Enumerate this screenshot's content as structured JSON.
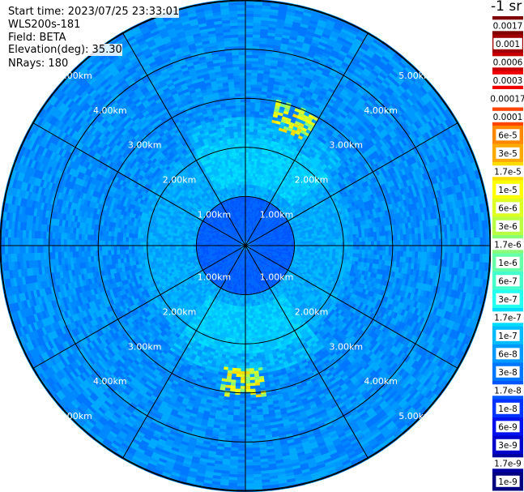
{
  "header": {
    "start_time": "Start time: 2023/07/25 23:33:01",
    "instrument": "WLS200s-181",
    "field": "Field: BETA",
    "elevation": "Elevation(deg): 35.30",
    "nrays": "NRays: 180"
  },
  "colorbar": {
    "title": "-1 sr",
    "labels": [
      "0.0017",
      "0.001",
      "0.0006",
      "0.0003",
      "0.00017",
      "0.0001",
      "6e-5",
      "3e-5",
      "1.7e-5",
      "1e-5",
      "6e-6",
      "3e-6",
      "1.7e-6",
      "1e-6",
      "6e-7",
      "3e-7",
      "1.7e-7",
      "1e-7",
      "6e-8",
      "3e-8",
      "1.7e-8",
      "1e-8",
      "6e-9",
      "3e-9",
      "1.7e-9",
      "1e-9"
    ],
    "colors": [
      "#800000",
      "#a00000",
      "#c80000",
      "#f00000",
      "#ffffff",
      "#ff4400",
      "#ff8800",
      "#ffaa00",
      "#ffdd00",
      "#ffff00",
      "#ddff22",
      "#bbff44",
      "#88ff77",
      "#66ffaa",
      "#44ffcc",
      "#22ffee",
      "#00ddff",
      "#00bbff",
      "#0099ff",
      "#0077ff",
      "#0055ff",
      "#0033ff",
      "#0011ee",
      "#0000cc",
      "#0000a0",
      "#000080"
    ]
  },
  "chart_data": {
    "type": "heatmap",
    "projection": "polar (PPI scan)",
    "field": "BETA",
    "units": "sr-1",
    "n_rays": 180,
    "elevation_deg": 35.3,
    "range_ring_labels": [
      "1.00km",
      "2.00km",
      "3.00km",
      "4.00km",
      "5.00km"
    ],
    "range_rings_km": [
      1,
      2,
      3,
      4,
      5
    ],
    "spoke_angles_deg": [
      0,
      30,
      60,
      90,
      120,
      150,
      180,
      210,
      240,
      270,
      300,
      330
    ],
    "max_range_km": 5.0,
    "background_level": "6e-8",
    "near_center_level": "1e-8",
    "notable_features": [
      {
        "note": "high-backscatter patches",
        "azimuth_deg": 20,
        "range_km": [
          2.4,
          3.0
        ],
        "level": "1e-5"
      },
      {
        "note": "high-backscatter patches",
        "azimuth_deg": 180,
        "range_km": [
          2.5,
          3.1
        ],
        "level": "1e-5"
      }
    ]
  },
  "colors": {
    "ring": "#000000",
    "label": "#ffffff"
  }
}
